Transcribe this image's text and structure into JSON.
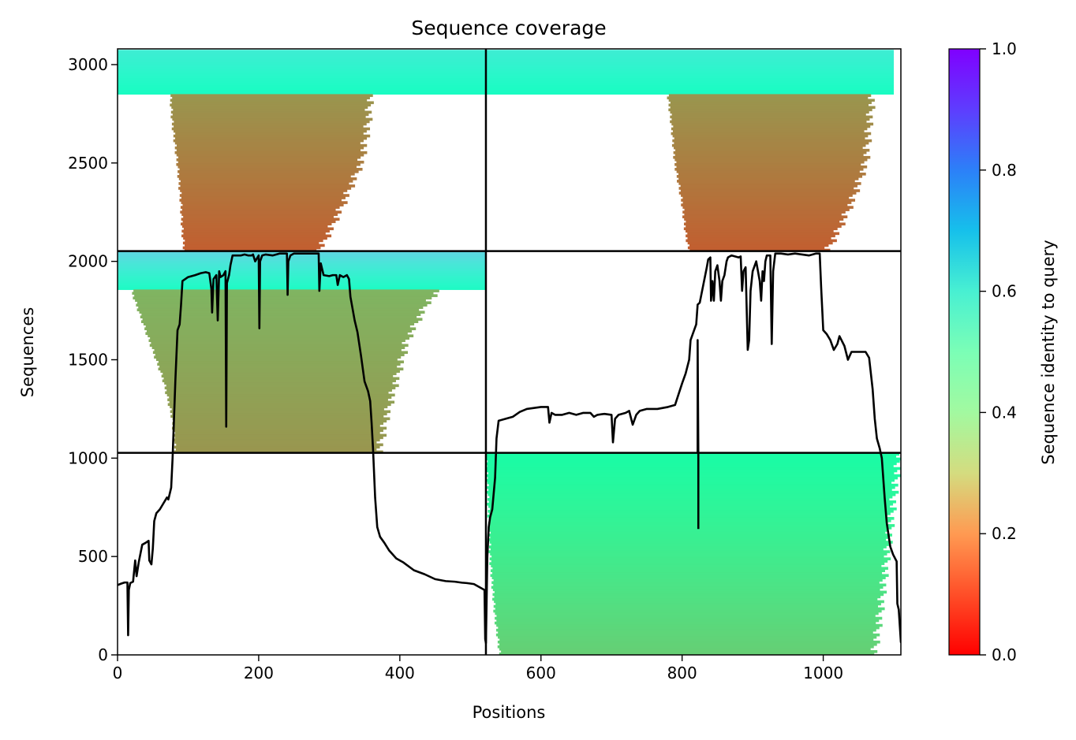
{
  "chart_data": {
    "type": "heatmap",
    "title": "Sequence coverage",
    "xlabel": "Positions",
    "ylabel": "Sequences",
    "colorbar_label": "Sequence identity to query",
    "colormap": "rainbow_r",
    "xlim": [
      0,
      1110
    ],
    "ylim": [
      0,
      3080
    ],
    "x_ticks": [
      0,
      200,
      400,
      600,
      800,
      1000
    ],
    "y_ticks": [
      0,
      500,
      1000,
      1500,
      2000,
      2500,
      3000
    ],
    "colorbar_range": [
      0,
      1
    ],
    "colorbar_ticks": [
      "0.0",
      "0.2",
      "0.4",
      "0.6",
      "0.8",
      "1.0"
    ],
    "grid": false,
    "domain_boundaries": {
      "x": [
        522
      ],
      "y": [
        1027,
        2052
      ]
    },
    "coverage_blocks": [
      {
        "x": [
          0,
          522
        ],
        "y": [
          2850,
          3075
        ],
        "start": 0,
        "end": 522,
        "identity_bottom": 0.55,
        "identity_top": 0.62
      },
      {
        "x": [
          522,
          1110
        ],
        "y": [
          2850,
          3075
        ],
        "start": 522,
        "end": 1100,
        "identity_bottom": 0.55,
        "identity_top": 0.62
      },
      {
        "x": [
          0,
          522
        ],
        "y": [
          2052,
          2850
        ],
        "profile": [
          [
            2052,
            95,
            285
          ],
          [
            2150,
            92,
            300
          ],
          [
            2300,
            90,
            320
          ],
          [
            2500,
            85,
            345
          ],
          [
            2700,
            78,
            355
          ],
          [
            2850,
            75,
            358
          ]
        ],
        "identity_bottom": 0.12,
        "identity_top": 0.2
      },
      {
        "x": [
          522,
          1110
        ],
        "y": [
          2052,
          2850
        ],
        "profile": [
          [
            2052,
            810,
            1005
          ],
          [
            2150,
            805,
            1020
          ],
          [
            2300,
            800,
            1040
          ],
          [
            2500,
            790,
            1060
          ],
          [
            2700,
            785,
            1065
          ],
          [
            2850,
            780,
            1070
          ]
        ],
        "identity_bottom": 0.12,
        "identity_top": 0.2
      },
      {
        "x": [
          0,
          522
        ],
        "y": [
          1857,
          2052
        ],
        "start": 0,
        "end": 522,
        "identity_bottom": 0.56,
        "identity_top": 0.68
      },
      {
        "x": [
          0,
          522
        ],
        "y": [
          1027,
          1857
        ],
        "profile": [
          [
            1027,
            82,
            370
          ],
          [
            1200,
            78,
            380
          ],
          [
            1400,
            65,
            395
          ],
          [
            1600,
            45,
            410
          ],
          [
            1800,
            25,
            440
          ],
          [
            1857,
            20,
            460
          ]
        ],
        "identity_bottom": 0.2,
        "identity_top": 0.25
      },
      {
        "x": [
          522,
          1110
        ],
        "y": [
          0,
          1027
        ],
        "profile": [
          [
            0,
            542,
            1072
          ],
          [
            200,
            535,
            1080
          ],
          [
            500,
            528,
            1090
          ],
          [
            800,
            525,
            1100
          ],
          [
            1027,
            522,
            1108
          ]
        ],
        "identity_bottom": 0.3,
        "identity_top": 0.45
      }
    ],
    "series": [
      {
        "type": "line",
        "color": "#000000",
        "points": [
          [
            0,
            355
          ],
          [
            5,
            362
          ],
          [
            10,
            368
          ],
          [
            14,
            368
          ],
          [
            15,
            100
          ],
          [
            16,
            330
          ],
          [
            18,
            365
          ],
          [
            22,
            372
          ],
          [
            25,
            480
          ],
          [
            27,
            400
          ],
          [
            30,
            470
          ],
          [
            35,
            560
          ],
          [
            40,
            570
          ],
          [
            44,
            580
          ],
          [
            45,
            480
          ],
          [
            48,
            460
          ],
          [
            50,
            540
          ],
          [
            52,
            680
          ],
          [
            55,
            720
          ],
          [
            60,
            740
          ],
          [
            65,
            770
          ],
          [
            70,
            800
          ],
          [
            72,
            790
          ],
          [
            76,
            850
          ],
          [
            78,
            1000
          ],
          [
            80,
            1200
          ],
          [
            82,
            1400
          ],
          [
            85,
            1650
          ],
          [
            88,
            1680
          ],
          [
            90,
            1780
          ],
          [
            92,
            1900
          ],
          [
            100,
            1920
          ],
          [
            110,
            1930
          ],
          [
            118,
            1940
          ],
          [
            125,
            1945
          ],
          [
            130,
            1940
          ],
          [
            133,
            1860
          ],
          [
            134,
            1740
          ],
          [
            136,
            1910
          ],
          [
            140,
            1930
          ],
          [
            142,
            1700
          ],
          [
            144,
            1950
          ],
          [
            146,
            1920
          ],
          [
            150,
            1930
          ],
          [
            153,
            1950
          ],
          [
            154,
            1160
          ],
          [
            155,
            1890
          ],
          [
            158,
            1930
          ],
          [
            160,
            1980
          ],
          [
            163,
            2030
          ],
          [
            170,
            2030
          ],
          [
            175,
            2030
          ],
          [
            180,
            2035
          ],
          [
            185,
            2030
          ],
          [
            190,
            2030
          ],
          [
            192,
            2035
          ],
          [
            195,
            2000
          ],
          [
            200,
            2030
          ],
          [
            201,
            1660
          ],
          [
            202,
            2000
          ],
          [
            205,
            2030
          ],
          [
            210,
            2035
          ],
          [
            220,
            2030
          ],
          [
            230,
            2040
          ],
          [
            240,
            2040
          ],
          [
            241,
            1830
          ],
          [
            242,
            2000
          ],
          [
            245,
            2030
          ],
          [
            250,
            2040
          ],
          [
            260,
            2040
          ],
          [
            270,
            2040
          ],
          [
            280,
            2040
          ],
          [
            285,
            2040
          ],
          [
            286,
            1850
          ],
          [
            288,
            1990
          ],
          [
            292,
            1930
          ],
          [
            300,
            1925
          ],
          [
            305,
            1930
          ],
          [
            310,
            1930
          ],
          [
            312,
            1880
          ],
          [
            315,
            1930
          ],
          [
            320,
            1920
          ],
          [
            325,
            1930
          ],
          [
            328,
            1910
          ],
          [
            330,
            1820
          ],
          [
            333,
            1760
          ],
          [
            336,
            1700
          ],
          [
            340,
            1640
          ],
          [
            345,
            1520
          ],
          [
            350,
            1390
          ],
          [
            355,
            1340
          ],
          [
            358,
            1290
          ],
          [
            360,
            1180
          ],
          [
            362,
            1050
          ],
          [
            365,
            800
          ],
          [
            368,
            650
          ],
          [
            372,
            600
          ],
          [
            378,
            570
          ],
          [
            385,
            530
          ],
          [
            395,
            490
          ],
          [
            405,
            470
          ],
          [
            420,
            430
          ],
          [
            435,
            410
          ],
          [
            450,
            385
          ],
          [
            465,
            375
          ],
          [
            478,
            372
          ],
          [
            488,
            367
          ],
          [
            495,
            365
          ],
          [
            505,
            360
          ],
          [
            515,
            340
          ],
          [
            520,
            330
          ],
          [
            521,
            80
          ],
          [
            522,
            60
          ],
          [
            524,
            500
          ],
          [
            526,
            650
          ],
          [
            528,
            700
          ],
          [
            531,
            740
          ],
          [
            535,
            900
          ],
          [
            537,
            1100
          ],
          [
            540,
            1190
          ],
          [
            550,
            1200
          ],
          [
            560,
            1210
          ],
          [
            570,
            1235
          ],
          [
            580,
            1250
          ],
          [
            600,
            1260
          ],
          [
            610,
            1260
          ],
          [
            612,
            1180
          ],
          [
            615,
            1230
          ],
          [
            620,
            1220
          ],
          [
            630,
            1220
          ],
          [
            640,
            1230
          ],
          [
            650,
            1220
          ],
          [
            660,
            1230
          ],
          [
            670,
            1230
          ],
          [
            675,
            1210
          ],
          [
            680,
            1220
          ],
          [
            690,
            1225
          ],
          [
            700,
            1220
          ],
          [
            702,
            1080
          ],
          [
            705,
            1200
          ],
          [
            710,
            1220
          ],
          [
            720,
            1230
          ],
          [
            725,
            1240
          ],
          [
            730,
            1170
          ],
          [
            735,
            1220
          ],
          [
            740,
            1240
          ],
          [
            750,
            1250
          ],
          [
            765,
            1250
          ],
          [
            780,
            1260
          ],
          [
            790,
            1270
          ],
          [
            800,
            1380
          ],
          [
            805,
            1430
          ],
          [
            810,
            1500
          ],
          [
            812,
            1600
          ],
          [
            815,
            1630
          ],
          [
            820,
            1680
          ],
          [
            822,
            1780
          ],
          [
            825,
            1790
          ],
          [
            830,
            1880
          ],
          [
            835,
            1970
          ],
          [
            837,
            2010
          ],
          [
            840,
            2020
          ],
          [
            841,
            1800
          ],
          [
            843,
            1900
          ],
          [
            845,
            1800
          ],
          [
            847,
            1950
          ],
          [
            850,
            1980
          ],
          [
            853,
            1900
          ],
          [
            855,
            1800
          ],
          [
            857,
            1900
          ],
          [
            860,
            1930
          ],
          [
            863,
            2000
          ],
          [
            865,
            2020
          ],
          [
            870,
            2030
          ],
          [
            875,
            2025
          ],
          [
            880,
            2020
          ],
          [
            883,
            2025
          ],
          [
            885,
            1850
          ],
          [
            887,
            1950
          ],
          [
            890,
            1970
          ],
          [
            893,
            1550
          ],
          [
            895,
            1600
          ],
          [
            897,
            1850
          ],
          [
            900,
            1950
          ],
          [
            905,
            2000
          ],
          [
            910,
            1900
          ],
          [
            912,
            1800
          ],
          [
            914,
            1950
          ],
          [
            916,
            1900
          ],
          [
            918,
            2000
          ],
          [
            920,
            2030
          ],
          [
            925,
            2030
          ],
          [
            927,
            1580
          ],
          [
            929,
            1950
          ],
          [
            932,
            2040
          ],
          [
            940,
            2040
          ],
          [
            950,
            2035
          ],
          [
            960,
            2040
          ],
          [
            970,
            2035
          ],
          [
            980,
            2030
          ],
          [
            990,
            2040
          ],
          [
            995,
            2040
          ],
          [
            997,
            1870
          ],
          [
            1000,
            1650
          ],
          [
            1005,
            1630
          ],
          [
            1010,
            1600
          ],
          [
            1015,
            1550
          ],
          [
            1020,
            1580
          ],
          [
            1023,
            1620
          ],
          [
            1030,
            1570
          ],
          [
            1035,
            1500
          ],
          [
            1040,
            1540
          ],
          [
            1050,
            1540
          ],
          [
            1060,
            1540
          ],
          [
            1065,
            1510
          ],
          [
            1070,
            1350
          ],
          [
            1073,
            1200
          ],
          [
            1076,
            1100
          ],
          [
            1080,
            1050
          ],
          [
            1083,
            1000
          ],
          [
            1087,
            800
          ],
          [
            1090,
            670
          ],
          [
            1095,
            550
          ],
          [
            1099,
            510
          ],
          [
            1104,
            475
          ],
          [
            1105,
            260
          ],
          [
            1107,
            230
          ],
          [
            1110,
            65
          ],
          [
            1115,
            45
          ]
        ]
      },
      {
        "type": "line",
        "color": "#000000",
        "points": [
          [
            822,
            1027
          ],
          [
            822,
            1600
          ],
          [
            823,
            1027
          ],
          [
            823,
            640
          ]
        ]
      }
    ]
  }
}
